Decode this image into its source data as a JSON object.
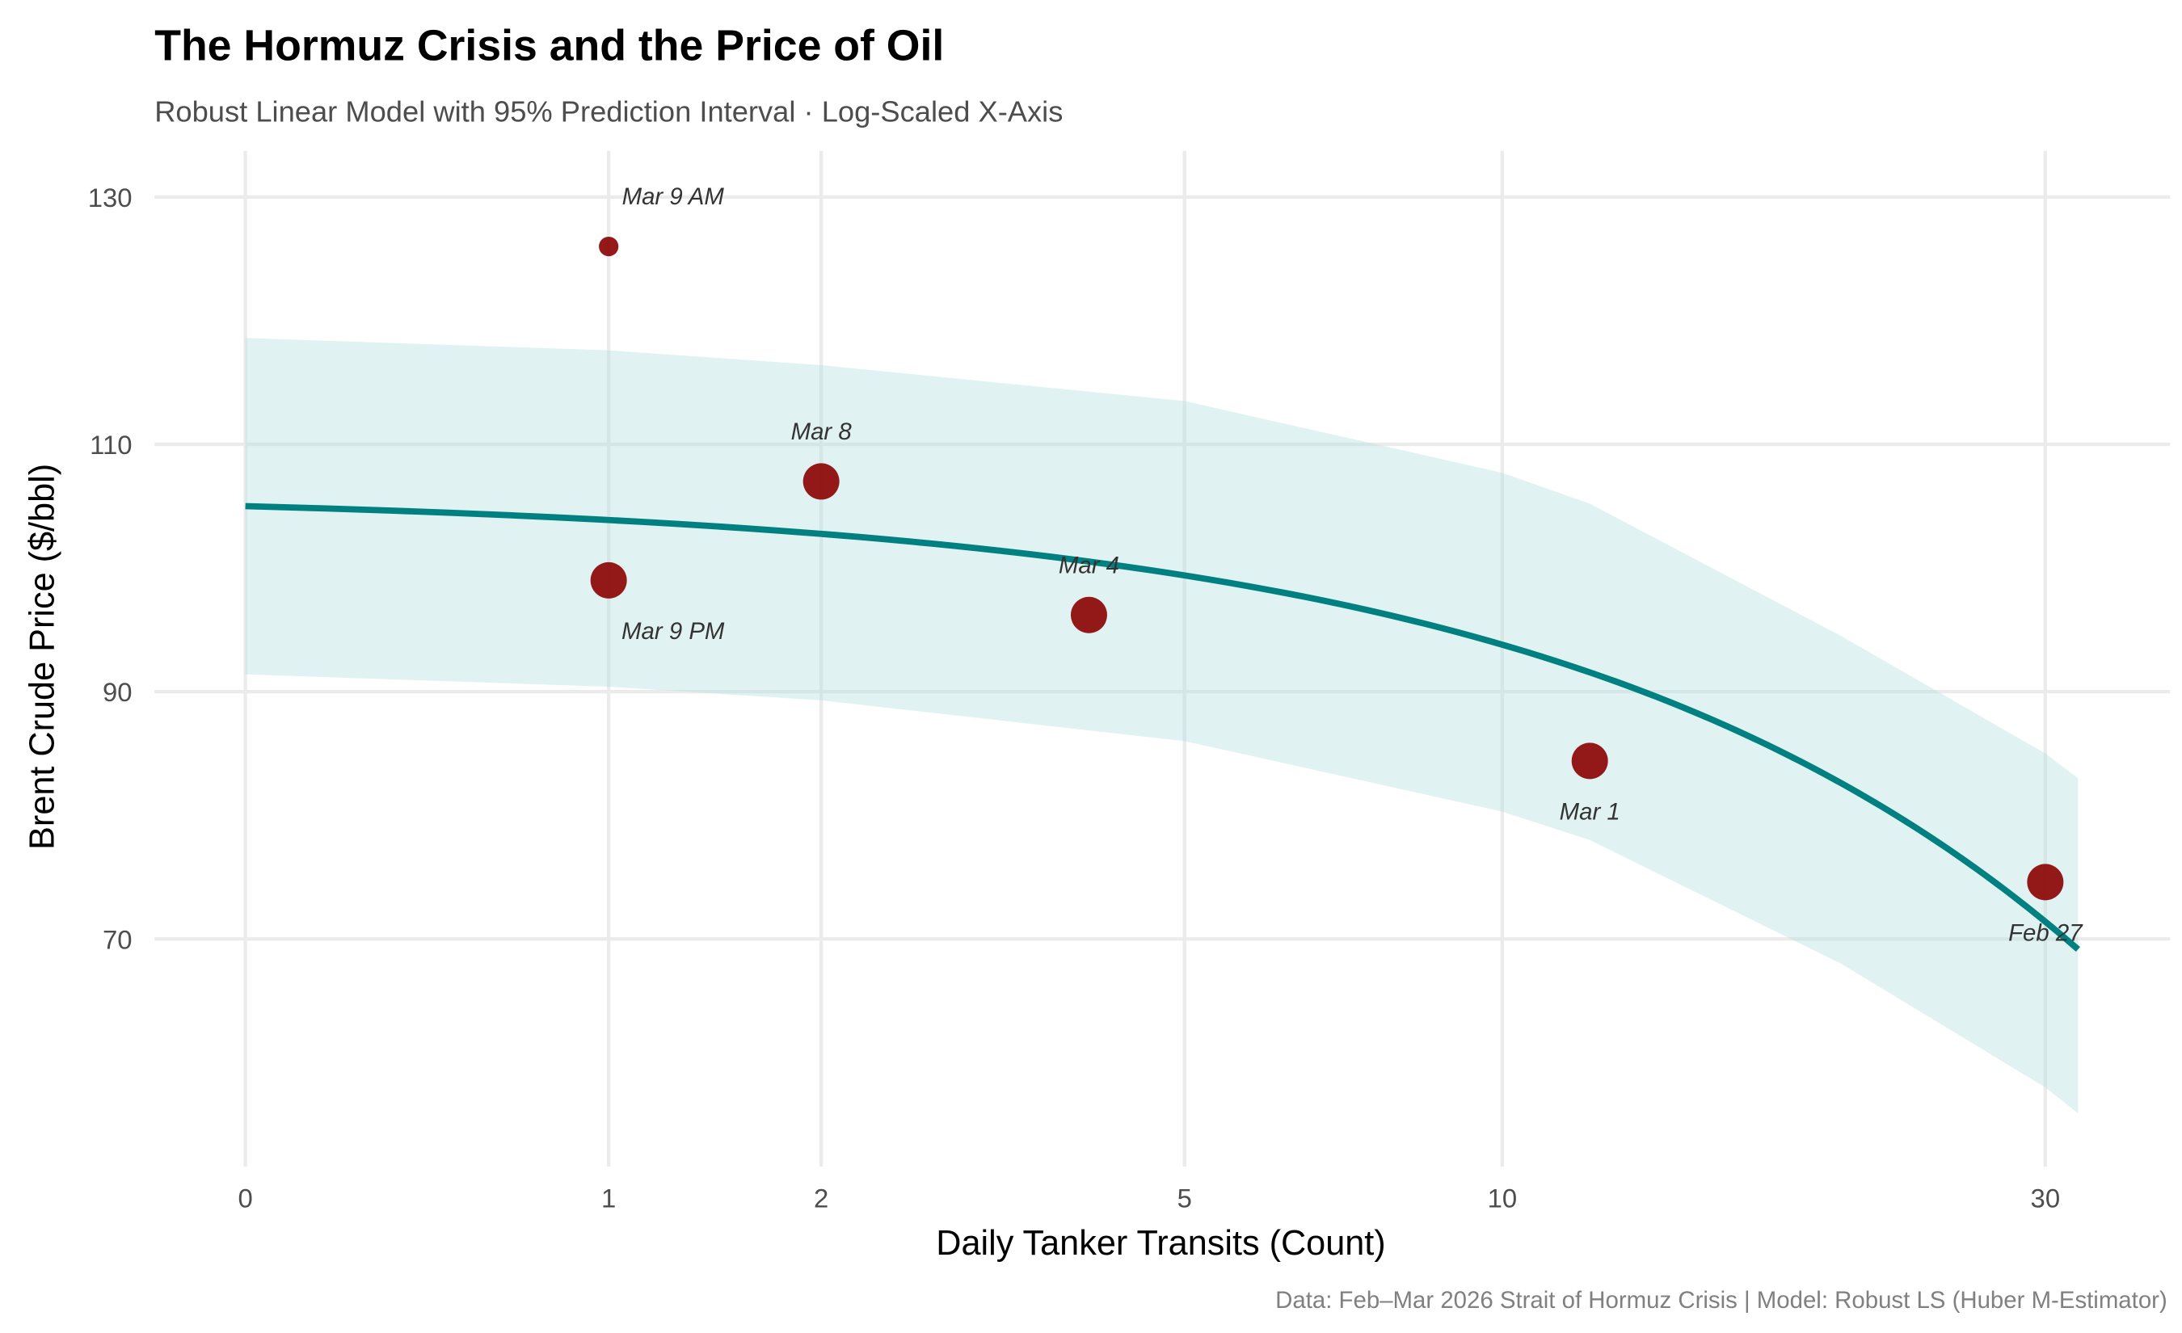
{
  "chart_data": {
    "type": "scatter",
    "title": "The Hormuz Crisis and the Price of Oil",
    "subtitle": "Robust Linear Model with 95% Prediction Interval · Log-Scaled X-Axis",
    "xlabel": "Daily Tanker Transits (Count)",
    "ylabel": "Brent Crude Price ($/bbl)",
    "caption": "Data: Feb–Mar 2026 Strait of Hormuz Crisis | Model: Robust LS (Huber M-Estimator)",
    "x_scale": "log1p",
    "xlim": [
      0,
      32
    ],
    "ylim": [
      52,
      134
    ],
    "x_ticks": [
      0,
      1,
      2,
      5,
      10,
      30
    ],
    "x_tick_labels": [
      "0",
      "1",
      "2",
      "5",
      "10",
      "30"
    ],
    "y_ticks": [
      70,
      90,
      110,
      130
    ],
    "y_tick_labels": [
      "70",
      "90",
      "110",
      "130"
    ],
    "grid": true,
    "legend": "none",
    "colors": {
      "points": "#8b0000",
      "fit_line": "#008080",
      "band": "#b2dfdb"
    },
    "points": [
      {
        "label": "Mar 9 AM",
        "x": 1,
        "y": 126,
        "size": "small"
      },
      {
        "label": "Mar 9 PM",
        "x": 1,
        "y": 99,
        "size": "large"
      },
      {
        "label": "Mar 8",
        "x": 2,
        "y": 107,
        "size": "large"
      },
      {
        "label": "Mar 4",
        "x": 4,
        "y": 96.2,
        "size": "large"
      },
      {
        "label": "Mar 1",
        "x": 12,
        "y": 84.4,
        "size": "large"
      },
      {
        "label": "Feb 27",
        "x": 30,
        "y": 74.6,
        "size": "large"
      }
    ],
    "fit": {
      "intercept": 105.0,
      "slope": -1.12
    },
    "prediction_interval": {
      "x": [
        0,
        1,
        2,
        5,
        10,
        12,
        20,
        30,
        32
      ],
      "lower": [
        91.4,
        90.4,
        89.3,
        86.0,
        80.3,
        78.0,
        68.0,
        58.0,
        55.9
      ],
      "upper": [
        118.6,
        117.6,
        116.4,
        113.5,
        107.7,
        105.2,
        94.5,
        85.0,
        83.0
      ]
    }
  }
}
